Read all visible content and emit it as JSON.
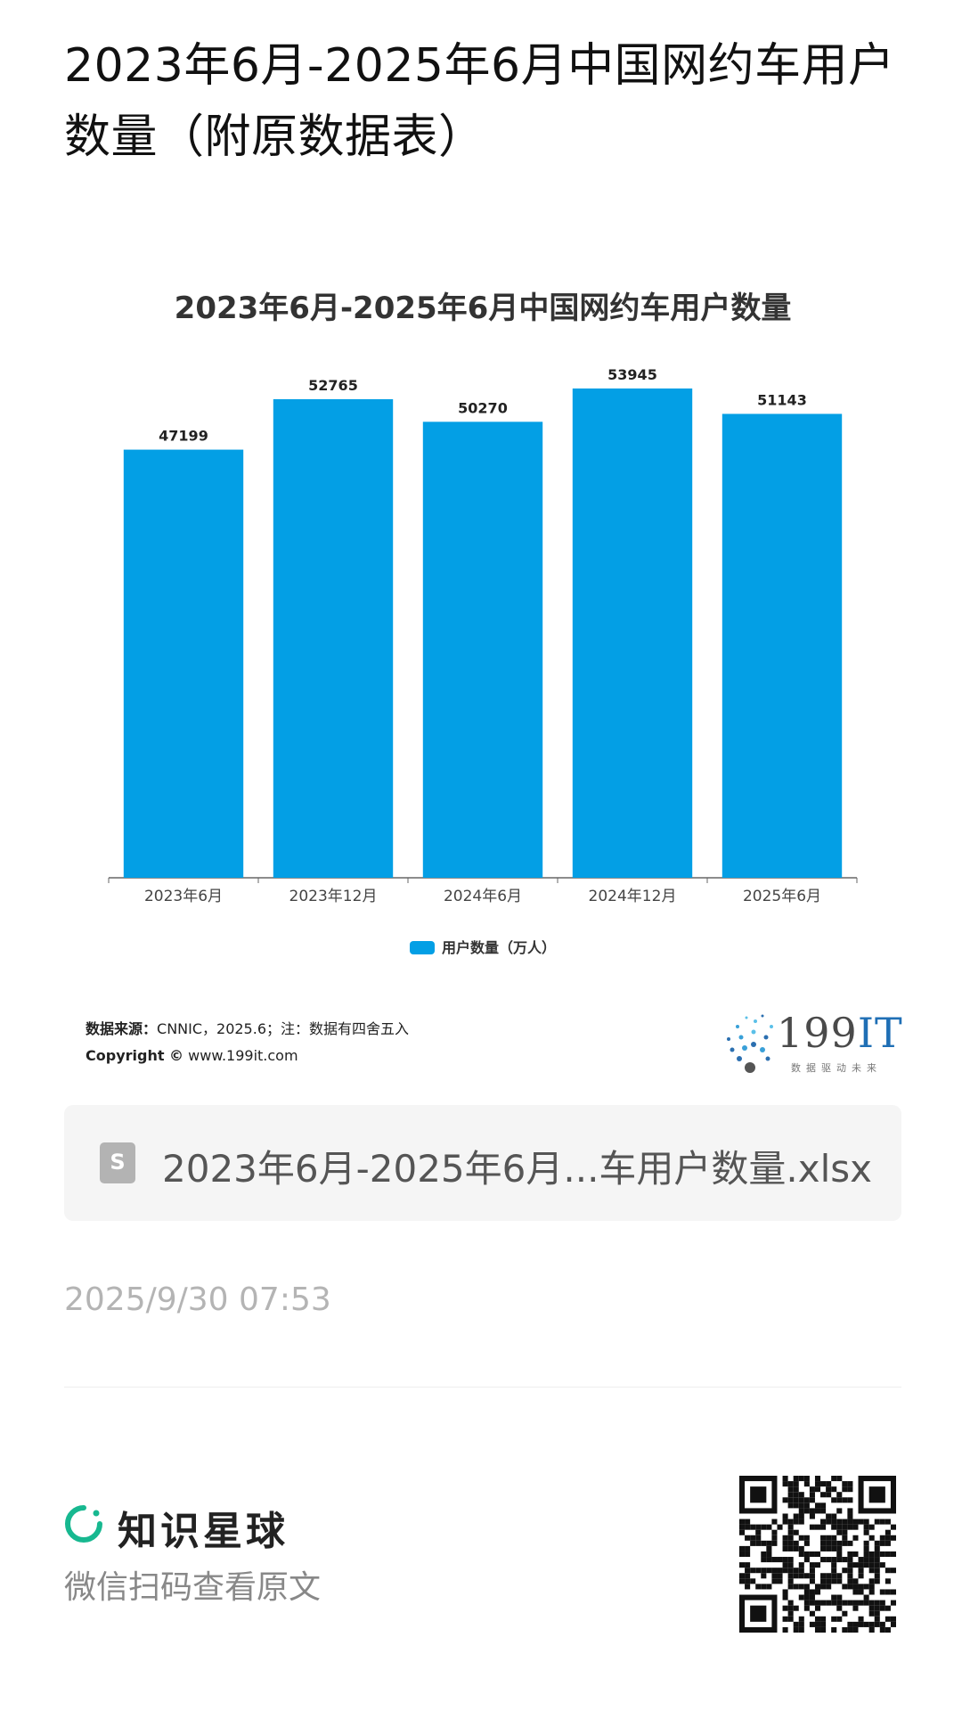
{
  "page": {
    "title": "2023年6月-2025年6月中国网约车用户数量（附原数据表）"
  },
  "chart_data": {
    "type": "bar",
    "title": "2023年6月-2025年6月中国网约车用户数量",
    "categories": [
      "2023年6月",
      "2023年12月",
      "2024年6月",
      "2024年12月",
      "2025年6月"
    ],
    "series": [
      {
        "name": "用户数量（万人）",
        "values": [
          47199,
          52765,
          50270,
          53945,
          51143
        ],
        "color": "#039fe5"
      }
    ],
    "ylim": [
      0,
      56000
    ],
    "data_labels": true,
    "grid": false,
    "legend_position": "bottom"
  },
  "source": {
    "label": "数据来源：",
    "text": "CNNIC，2025.6；注：数据有四舍五入",
    "copyright_label": "Copyright ©",
    "copyright_site": "www.199it.com"
  },
  "brand": {
    "name_num": "199",
    "name_it": "IT",
    "slogan": "数据驱动未来"
  },
  "file": {
    "icon": "spreadsheet-file-icon",
    "icon_letter": "S",
    "name": "2023年6月-2025年6月...车用户数量.xlsx"
  },
  "timestamp": "2025/9/30 07:53",
  "footer": {
    "brand_name": "知识星球",
    "scan_tip": "微信扫码查看原文",
    "accent_color": "#17b890"
  }
}
